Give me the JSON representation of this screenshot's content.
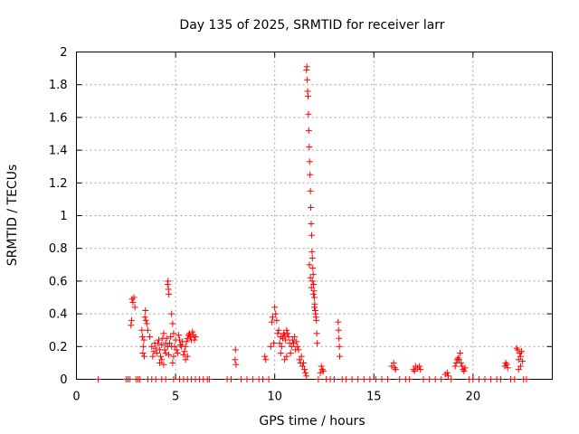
{
  "chart_data": {
    "type": "scatter",
    "title": "Day 135 of 2025, SRMTID for receiver larr",
    "xlabel": "GPS time / hours",
    "ylabel": "SRMTID / TECUs",
    "xlim": [
      0,
      24
    ],
    "ylim": [
      0,
      2
    ],
    "grid": true,
    "marker": "+",
    "marker_color": "#ff0000",
    "x_ticks": [
      {
        "value": 0,
        "label": "0"
      },
      {
        "value": 5,
        "label": "5"
      },
      {
        "value": 10,
        "label": "10"
      },
      {
        "value": 15,
        "label": "15"
      },
      {
        "value": 20,
        "label": "20"
      }
    ],
    "y_ticks": [
      {
        "value": 0,
        "label": "0"
      },
      {
        "value": 0.2,
        "label": "0.2"
      },
      {
        "value": 0.4,
        "label": "0.4"
      },
      {
        "value": 0.6,
        "label": "0.6"
      },
      {
        "value": 0.8,
        "label": "0.8"
      },
      {
        "value": 1.0,
        "label": "1"
      },
      {
        "value": 1.2,
        "label": "1.2"
      },
      {
        "value": 1.4,
        "label": "1.4"
      },
      {
        "value": 1.6,
        "label": "1.6"
      },
      {
        "value": 1.8,
        "label": "1.8"
      },
      {
        "value": 2.0,
        "label": "2"
      }
    ],
    "series": [
      {
        "name": "SRMTID",
        "points": [
          [
            1.1,
            0
          ],
          [
            2.5,
            0
          ],
          [
            2.6,
            0
          ],
          [
            2.7,
            0
          ],
          [
            2.75,
            0.33
          ],
          [
            2.8,
            0.49
          ],
          [
            2.85,
            0.47
          ],
          [
            2.9,
            0.5
          ],
          [
            2.95,
            0.44
          ],
          [
            2.78,
            0.36
          ],
          [
            3.0,
            0
          ],
          [
            3.1,
            0
          ],
          [
            3.2,
            0
          ],
          [
            3.3,
            0.3
          ],
          [
            3.33,
            0.26
          ],
          [
            3.37,
            0.2
          ],
          [
            3.4,
            0.24
          ],
          [
            3.45,
            0.38
          ],
          [
            3.48,
            0.42
          ],
          [
            3.5,
            0.36
          ],
          [
            3.55,
            0.34
          ],
          [
            3.6,
            0.3
          ],
          [
            3.35,
            0.16
          ],
          [
            3.42,
            0.14
          ],
          [
            3.7,
            0.26
          ],
          [
            3.8,
            0.2
          ],
          [
            3.85,
            0.14
          ],
          [
            3.9,
            0.17
          ],
          [
            3.95,
            0.22
          ],
          [
            4.0,
            0.19
          ],
          [
            4.05,
            0.16
          ],
          [
            4.1,
            0.22
          ],
          [
            4.15,
            0.24
          ],
          [
            4.2,
            0.18
          ],
          [
            4.25,
            0.14
          ],
          [
            4.3,
            0.21
          ],
          [
            4.35,
            0.25
          ],
          [
            4.4,
            0.28
          ],
          [
            4.45,
            0.18
          ],
          [
            4.5,
            0.22
          ],
          [
            4.55,
            0.25
          ],
          [
            4.6,
            0.2
          ],
          [
            4.65,
            0.15
          ],
          [
            4.7,
            0.22
          ],
          [
            4.75,
            0.26
          ],
          [
            4.8,
            0.2
          ],
          [
            4.85,
            0.1
          ],
          [
            4.9,
            0.14
          ],
          [
            4.95,
            0.2
          ],
          [
            4.2,
            0.1
          ],
          [
            4.3,
            0.12
          ],
          [
            4.4,
            0.09
          ],
          [
            4.5,
            0.16
          ],
          [
            4.6,
            0.58
          ],
          [
            4.62,
            0.6
          ],
          [
            4.64,
            0.55
          ],
          [
            4.66,
            0.52
          ],
          [
            4.8,
            0.4
          ],
          [
            4.85,
            0.34
          ],
          [
            4.9,
            0.28
          ],
          [
            3.6,
            0
          ],
          [
            3.8,
            0
          ],
          [
            4.0,
            0
          ],
          [
            4.3,
            0
          ],
          [
            4.5,
            0
          ],
          [
            4.9,
            0
          ],
          [
            5.2,
            0
          ],
          [
            5.0,
            0.24
          ],
          [
            5.05,
            0.18
          ],
          [
            5.1,
            0.16
          ],
          [
            5.15,
            0.27
          ],
          [
            5.2,
            0.24
          ],
          [
            5.25,
            0.21
          ],
          [
            5.3,
            0.2
          ],
          [
            5.35,
            0.23
          ],
          [
            5.4,
            0.15
          ],
          [
            5.45,
            0.17
          ],
          [
            5.5,
            0.2
          ],
          [
            5.55,
            0.23
          ],
          [
            5.6,
            0.25
          ],
          [
            5.65,
            0.27
          ],
          [
            5.7,
            0.28
          ],
          [
            5.75,
            0.26
          ],
          [
            5.8,
            0.24
          ],
          [
            5.85,
            0.29
          ],
          [
            5.9,
            0.27
          ],
          [
            5.95,
            0.24
          ],
          [
            6.0,
            0.26
          ],
          [
            5.5,
            0.12
          ],
          [
            5.6,
            0.14
          ],
          [
            5.4,
            0
          ],
          [
            5.6,
            0
          ],
          [
            5.8,
            0
          ],
          [
            6.0,
            0
          ],
          [
            6.2,
            0
          ],
          [
            6.4,
            0
          ],
          [
            6.6,
            0
          ],
          [
            6.7,
            0
          ],
          [
            7.6,
            0
          ],
          [
            7.8,
            0
          ],
          [
            8.0,
            0.12
          ],
          [
            8.02,
            0.18
          ],
          [
            8.05,
            0.09
          ],
          [
            8.3,
            0
          ],
          [
            8.6,
            0
          ],
          [
            8.9,
            0
          ],
          [
            9.2,
            0
          ],
          [
            9.4,
            0
          ],
          [
            9.5,
            0.14
          ],
          [
            9.55,
            0.12
          ],
          [
            9.7,
            0
          ],
          [
            9.8,
            0.2
          ],
          [
            9.85,
            0.35
          ],
          [
            9.9,
            0.38
          ],
          [
            9.95,
            0.22
          ],
          [
            10.0,
            0.44
          ],
          [
            10.05,
            0.4
          ],
          [
            10.1,
            0.36
          ],
          [
            10.15,
            0.28
          ],
          [
            10.2,
            0.3
          ],
          [
            10.25,
            0.22
          ],
          [
            10.3,
            0.26
          ],
          [
            10.35,
            0.2
          ],
          [
            10.4,
            0.25
          ],
          [
            10.45,
            0.28
          ],
          [
            10.5,
            0.27
          ],
          [
            10.55,
            0.24
          ],
          [
            10.6,
            0.3
          ],
          [
            10.65,
            0.28
          ],
          [
            10.7,
            0.26
          ],
          [
            10.75,
            0.22
          ],
          [
            10.8,
            0.16
          ],
          [
            10.85,
            0.2
          ],
          [
            10.9,
            0.24
          ],
          [
            10.95,
            0.22
          ],
          [
            11.0,
            0.26
          ],
          [
            11.05,
            0.18
          ],
          [
            11.1,
            0.23
          ],
          [
            11.15,
            0.2
          ],
          [
            11.2,
            0.18
          ],
          [
            10.5,
            0.12
          ],
          [
            10.6,
            0.14
          ],
          [
            10.3,
            0.16
          ],
          [
            11.25,
            0.12
          ],
          [
            11.3,
            0.1
          ],
          [
            11.35,
            0.14
          ],
          [
            11.4,
            0.08
          ],
          [
            11.45,
            0.1
          ],
          [
            11.5,
            0.06
          ],
          [
            11.55,
            0.04
          ],
          [
            11.6,
            0.02
          ],
          [
            11.6,
            1.89
          ],
          [
            11.62,
            1.91
          ],
          [
            11.64,
            1.83
          ],
          [
            11.66,
            1.76
          ],
          [
            11.68,
            1.73
          ],
          [
            11.7,
            1.62
          ],
          [
            11.72,
            1.52
          ],
          [
            11.74,
            1.42
          ],
          [
            11.76,
            1.33
          ],
          [
            11.78,
            1.25
          ],
          [
            11.8,
            1.15
          ],
          [
            11.82,
            1.05
          ],
          [
            11.84,
            0.95
          ],
          [
            11.86,
            0.88
          ],
          [
            11.88,
            0.78
          ],
          [
            11.9,
            0.74
          ],
          [
            11.92,
            0.68
          ],
          [
            11.94,
            0.64
          ],
          [
            11.96,
            0.58
          ],
          [
            11.98,
            0.54
          ],
          [
            12.0,
            0.5
          ],
          [
            12.02,
            0.46
          ],
          [
            12.04,
            0.42
          ],
          [
            12.06,
            0.4
          ],
          [
            12.08,
            0.38
          ],
          [
            12.1,
            0.36
          ],
          [
            12.12,
            0.28
          ],
          [
            12.14,
            0.22
          ],
          [
            11.75,
            0.7
          ],
          [
            11.8,
            0.62
          ],
          [
            11.85,
            0.56
          ],
          [
            11.9,
            0.6
          ],
          [
            11.95,
            0.52
          ],
          [
            12.0,
            0.44
          ],
          [
            12.3,
            0.04
          ],
          [
            12.35,
            0.08
          ],
          [
            12.4,
            0.06
          ],
          [
            12.45,
            0.05
          ],
          [
            12.2,
            0
          ],
          [
            12.6,
            0
          ],
          [
            12.8,
            0
          ],
          [
            13.0,
            0
          ],
          [
            13.2,
            0.35
          ],
          [
            13.22,
            0.3
          ],
          [
            13.24,
            0.25
          ],
          [
            13.26,
            0.2
          ],
          [
            13.28,
            0.14
          ],
          [
            13.4,
            0
          ],
          [
            13.6,
            0
          ],
          [
            13.9,
            0
          ],
          [
            14.2,
            0
          ],
          [
            14.5,
            0
          ],
          [
            14.8,
            0
          ],
          [
            15.1,
            0
          ],
          [
            15.4,
            0
          ],
          [
            15.7,
            0
          ],
          [
            15.9,
            0.08
          ],
          [
            16.0,
            0.1
          ],
          [
            16.05,
            0.07
          ],
          [
            16.1,
            0.06
          ],
          [
            16.3,
            0
          ],
          [
            16.6,
            0
          ],
          [
            16.8,
            0
          ],
          [
            17.0,
            0.06
          ],
          [
            17.05,
            0.05
          ],
          [
            17.1,
            0.08
          ],
          [
            17.2,
            0.07
          ],
          [
            17.3,
            0.08
          ],
          [
            17.35,
            0.06
          ],
          [
            17.5,
            0
          ],
          [
            17.8,
            0
          ],
          [
            18.1,
            0
          ],
          [
            18.4,
            0
          ],
          [
            18.6,
            0.03
          ],
          [
            18.7,
            0.04
          ],
          [
            18.75,
            0.02
          ],
          [
            18.9,
            0
          ],
          [
            19.1,
            0.08
          ],
          [
            19.15,
            0.1
          ],
          [
            19.2,
            0.12
          ],
          [
            19.25,
            0.13
          ],
          [
            19.3,
            0.12
          ],
          [
            19.35,
            0.16
          ],
          [
            19.4,
            0.1
          ],
          [
            19.45,
            0.08
          ],
          [
            19.5,
            0.06
          ],
          [
            19.55,
            0.05
          ],
          [
            19.6,
            0.07
          ],
          [
            19.8,
            0
          ],
          [
            20.0,
            0
          ],
          [
            20.3,
            0
          ],
          [
            20.6,
            0
          ],
          [
            20.9,
            0
          ],
          [
            21.2,
            0
          ],
          [
            21.4,
            0
          ],
          [
            21.6,
            0.08
          ],
          [
            21.65,
            0.1
          ],
          [
            21.7,
            0.09
          ],
          [
            21.75,
            0.07
          ],
          [
            21.9,
            0
          ],
          [
            22.1,
            0
          ],
          [
            22.2,
            0.19
          ],
          [
            22.25,
            0.18
          ],
          [
            22.3,
            0.12
          ],
          [
            22.35,
            0.16
          ],
          [
            22.4,
            0.14
          ],
          [
            22.45,
            0.17
          ],
          [
            22.5,
            0.11
          ],
          [
            22.4,
            0.08
          ],
          [
            22.3,
            0.06
          ],
          [
            22.55,
            0
          ],
          [
            22.7,
            0
          ]
        ]
      }
    ]
  }
}
